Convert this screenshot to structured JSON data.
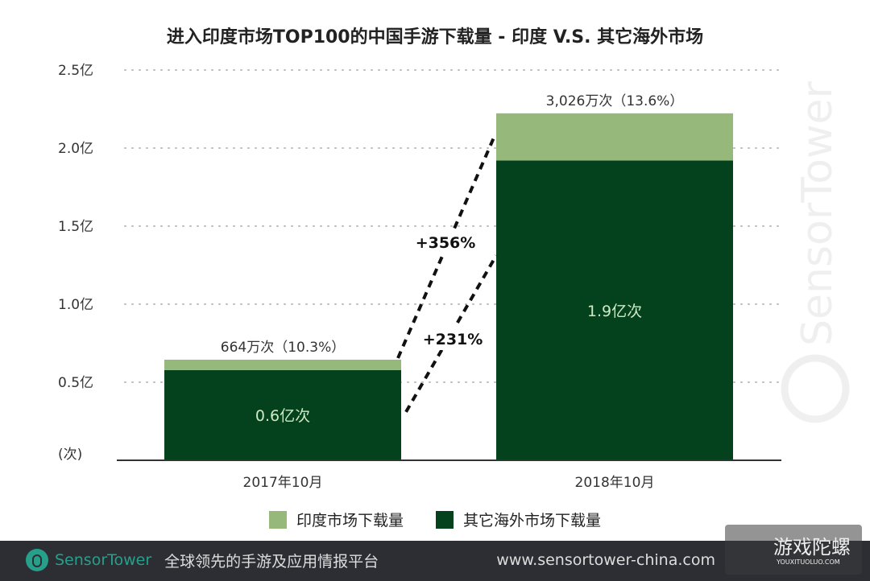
{
  "chart_data": {
    "type": "bar",
    "stacked": true,
    "title": "进入印度市场TOP100的中国手游下载量 - 印度 V.S. 其它海外市场",
    "ylabel": "(次)",
    "ylim": [
      0,
      2.5
    ],
    "yticks": [
      "0.5亿",
      "1.0亿",
      "1.5亿",
      "2.0亿",
      "2.5亿"
    ],
    "ytick_values": [
      0.5,
      1.0,
      1.5,
      2.0,
      2.5
    ],
    "grid": true,
    "legend_position": "bottom",
    "categories": [
      "2017年10月",
      "2018年10月"
    ],
    "series": [
      {
        "name": "其它海外市场下载量",
        "values": [
          0.578,
          1.92
        ],
        "color": "#03421c",
        "labels": [
          "0.6亿次",
          "1.9亿次"
        ]
      },
      {
        "name": "印度市场下载量",
        "values": [
          0.0664,
          0.3026
        ],
        "color": "#96b87a",
        "labels": [
          "664万次（10.3%）",
          "3,026万次（13.6%）"
        ]
      }
    ],
    "annotations": [
      "+356%",
      "+231%"
    ]
  },
  "footer": {
    "brand": "SensorTower",
    "slogan": "全球领先的手游及应用情报平台",
    "url": "www.sensortower-china.com"
  },
  "watermark": "SensorTower",
  "overlay_watermark": {
    "text": "游戏陀螺",
    "sub": "YOUXITUOLUO.COM"
  }
}
